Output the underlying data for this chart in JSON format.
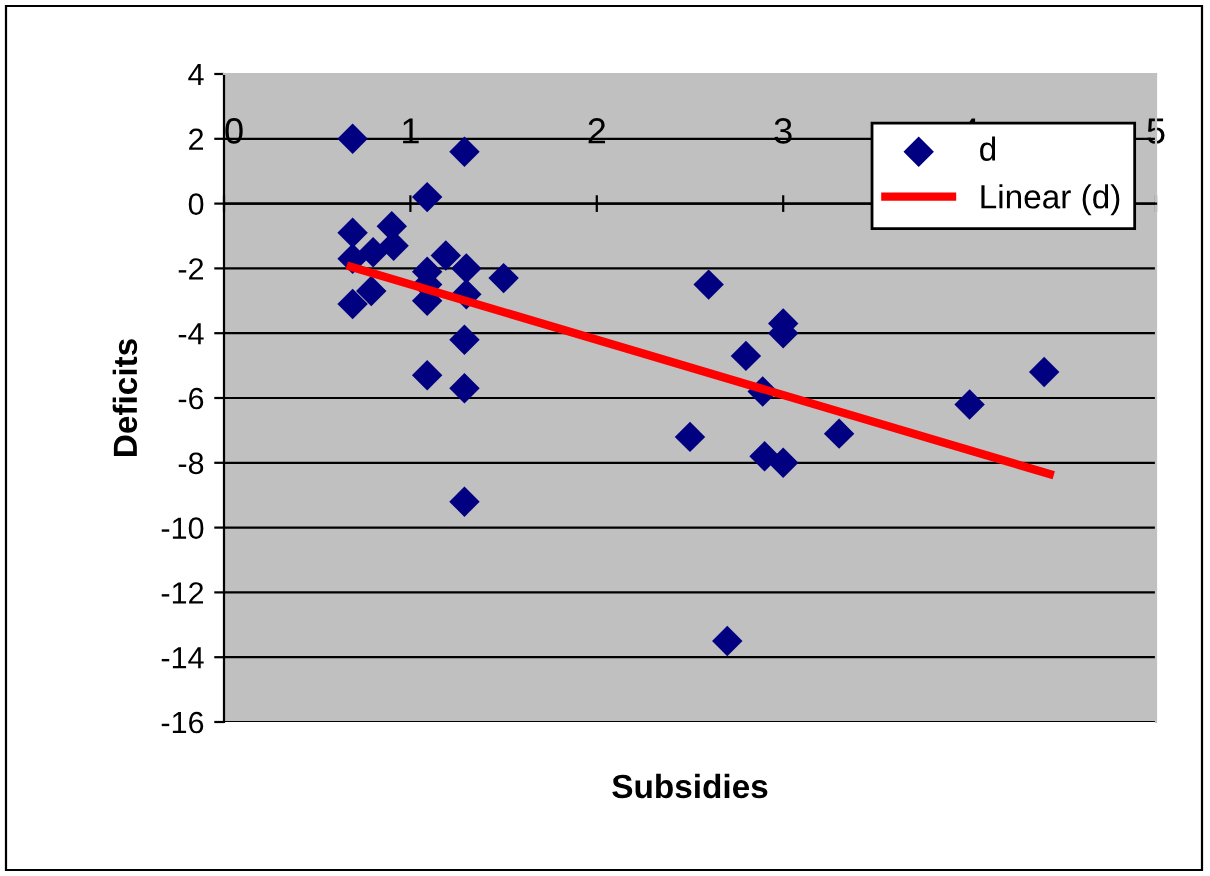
{
  "chart_data": {
    "type": "scatter",
    "xlabel": "Subsidies",
    "ylabel": "Deficits",
    "xlim": [
      0,
      5
    ],
    "ylim": [
      -16,
      4
    ],
    "xticks": [
      0,
      1,
      2,
      3,
      4,
      5
    ],
    "yticks": [
      -16,
      -14,
      -12,
      -10,
      -8,
      -6,
      -4,
      -2,
      0,
      2,
      4
    ],
    "grid": "y",
    "legend": "top right",
    "series": [
      {
        "name": "d",
        "marker": "diamond",
        "color": "#000080",
        "x": [
          0.69,
          1.29,
          1.09,
          0.69,
          0.9,
          0.69,
          0.8,
          0.91,
          1.19,
          1.3,
          1.09,
          1.5,
          1.09,
          1.3,
          0.79,
          0.69,
          1.09,
          1.29,
          1.09,
          1.29,
          1.29,
          2.6,
          3.0,
          3.0,
          2.8,
          2.89,
          4.4,
          4.0,
          2.5,
          3.3,
          2.9,
          3.0,
          2.7
        ],
        "values": [
          2.0,
          1.6,
          0.2,
          -0.9,
          -0.7,
          -1.7,
          -1.5,
          -1.3,
          -1.6,
          -2.0,
          -2.1,
          -2.3,
          -2.5,
          -2.8,
          -2.7,
          -3.1,
          -3.0,
          -4.2,
          -5.3,
          -5.7,
          -9.2,
          -2.5,
          -3.7,
          -4.0,
          -4.7,
          -5.8,
          -5.2,
          -6.2,
          -7.2,
          -7.1,
          -7.8,
          -8.0,
          -13.5
        ]
      },
      {
        "name": "Linear (d)",
        "type": "line",
        "color": "#ff0000",
        "x": [
          0.68,
          4.43
        ],
        "values": [
          -1.95,
          -8.35
        ]
      }
    ]
  }
}
